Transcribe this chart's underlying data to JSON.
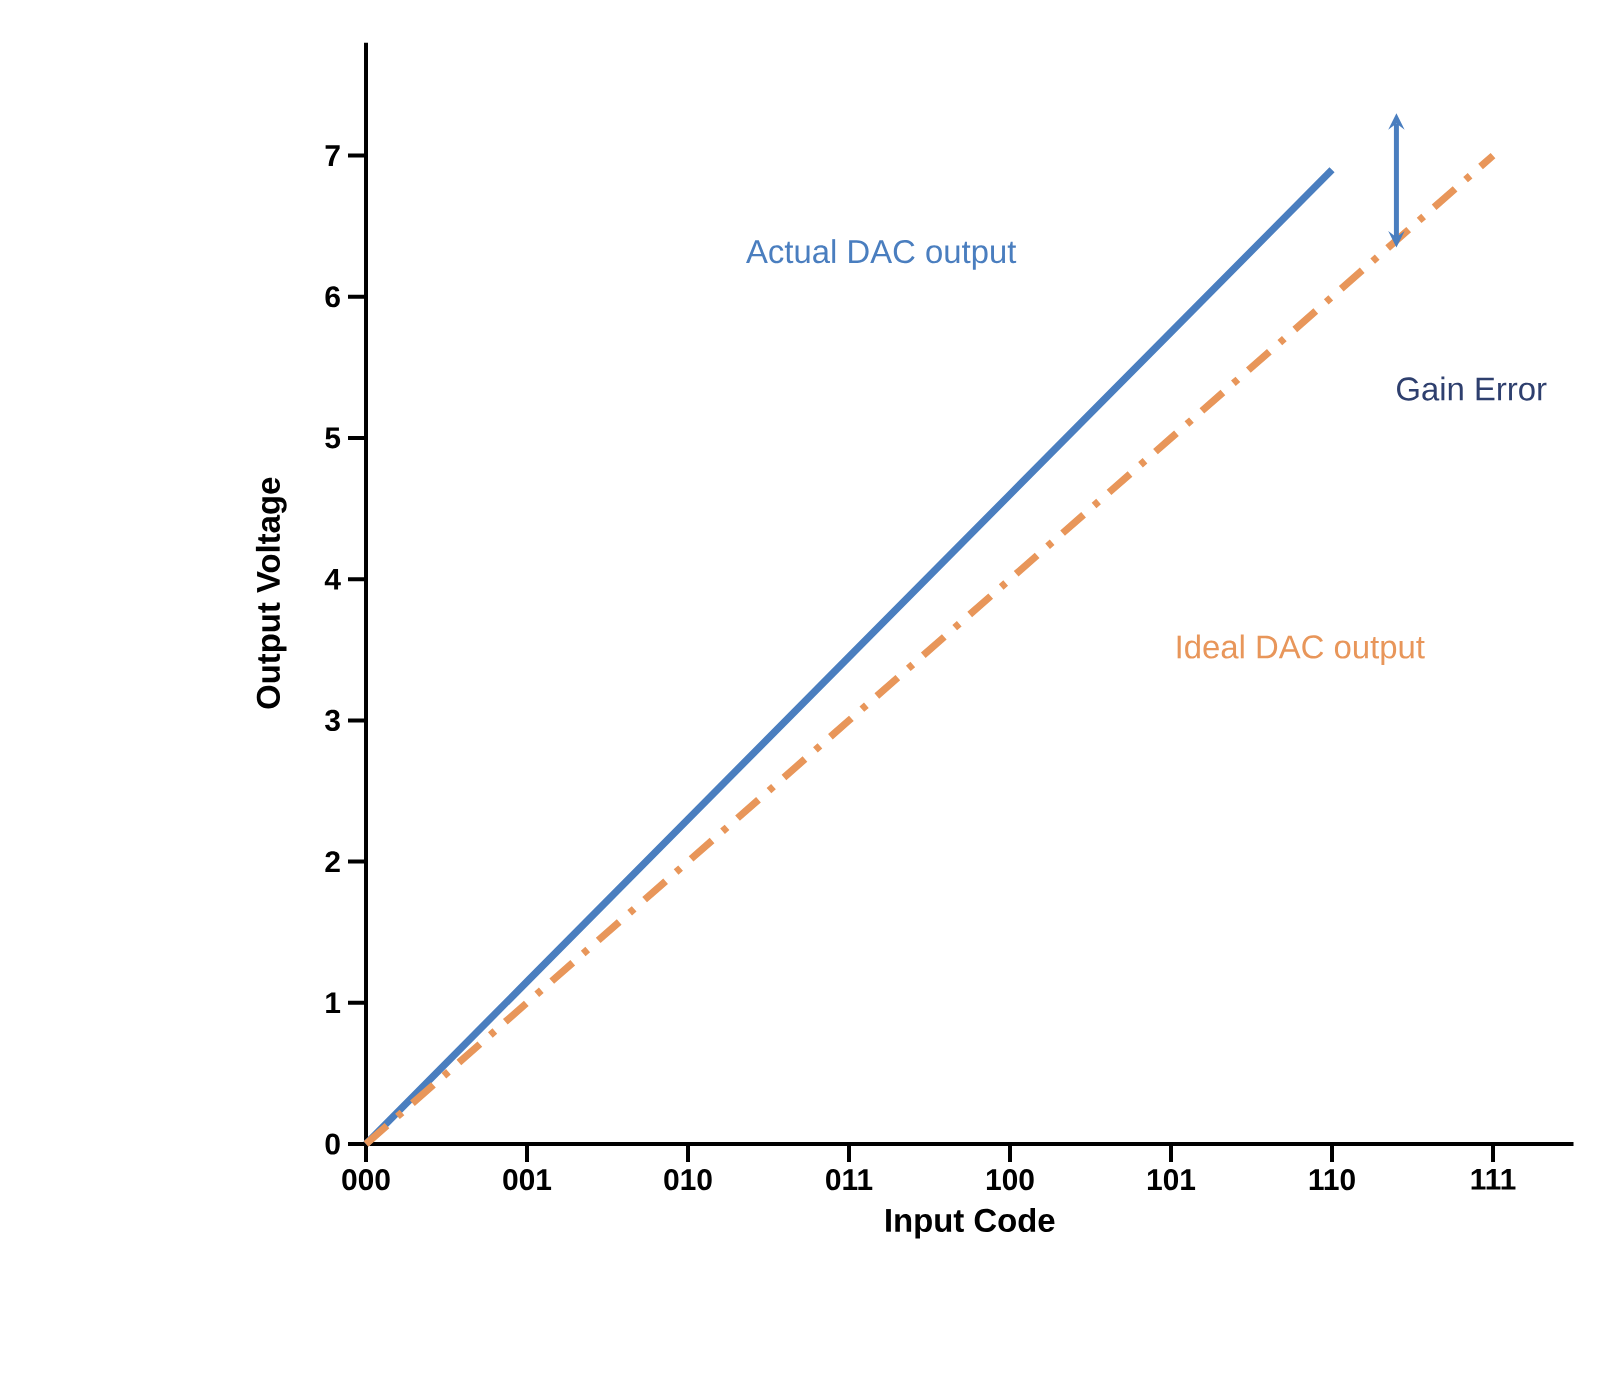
{
  "chart_data": {
    "type": "line",
    "xlabel": "Input Code",
    "ylabel": "Output Voltage",
    "categories": [
      "000",
      "001",
      "010",
      "011",
      "100",
      "101",
      "110",
      "111"
    ],
    "ylim": [
      0,
      7.8
    ],
    "yticks": [
      0,
      1,
      2,
      3,
      4,
      5,
      6,
      7
    ],
    "series": [
      {
        "name": "Actual DAC output",
        "color": "#4a7ebf",
        "values": [
          0,
          1.15,
          2.3,
          3.45,
          4.6,
          5.75,
          6.9,
          null
        ],
        "line_style": "solid"
      },
      {
        "name": "Ideal DAC output",
        "color": "#e8965a",
        "values": [
          0,
          1,
          2,
          3,
          4,
          5,
          6,
          7
        ],
        "line_style": "dashdot"
      }
    ],
    "annotations": [
      "Gain Error"
    ],
    "grid": false
  }
}
